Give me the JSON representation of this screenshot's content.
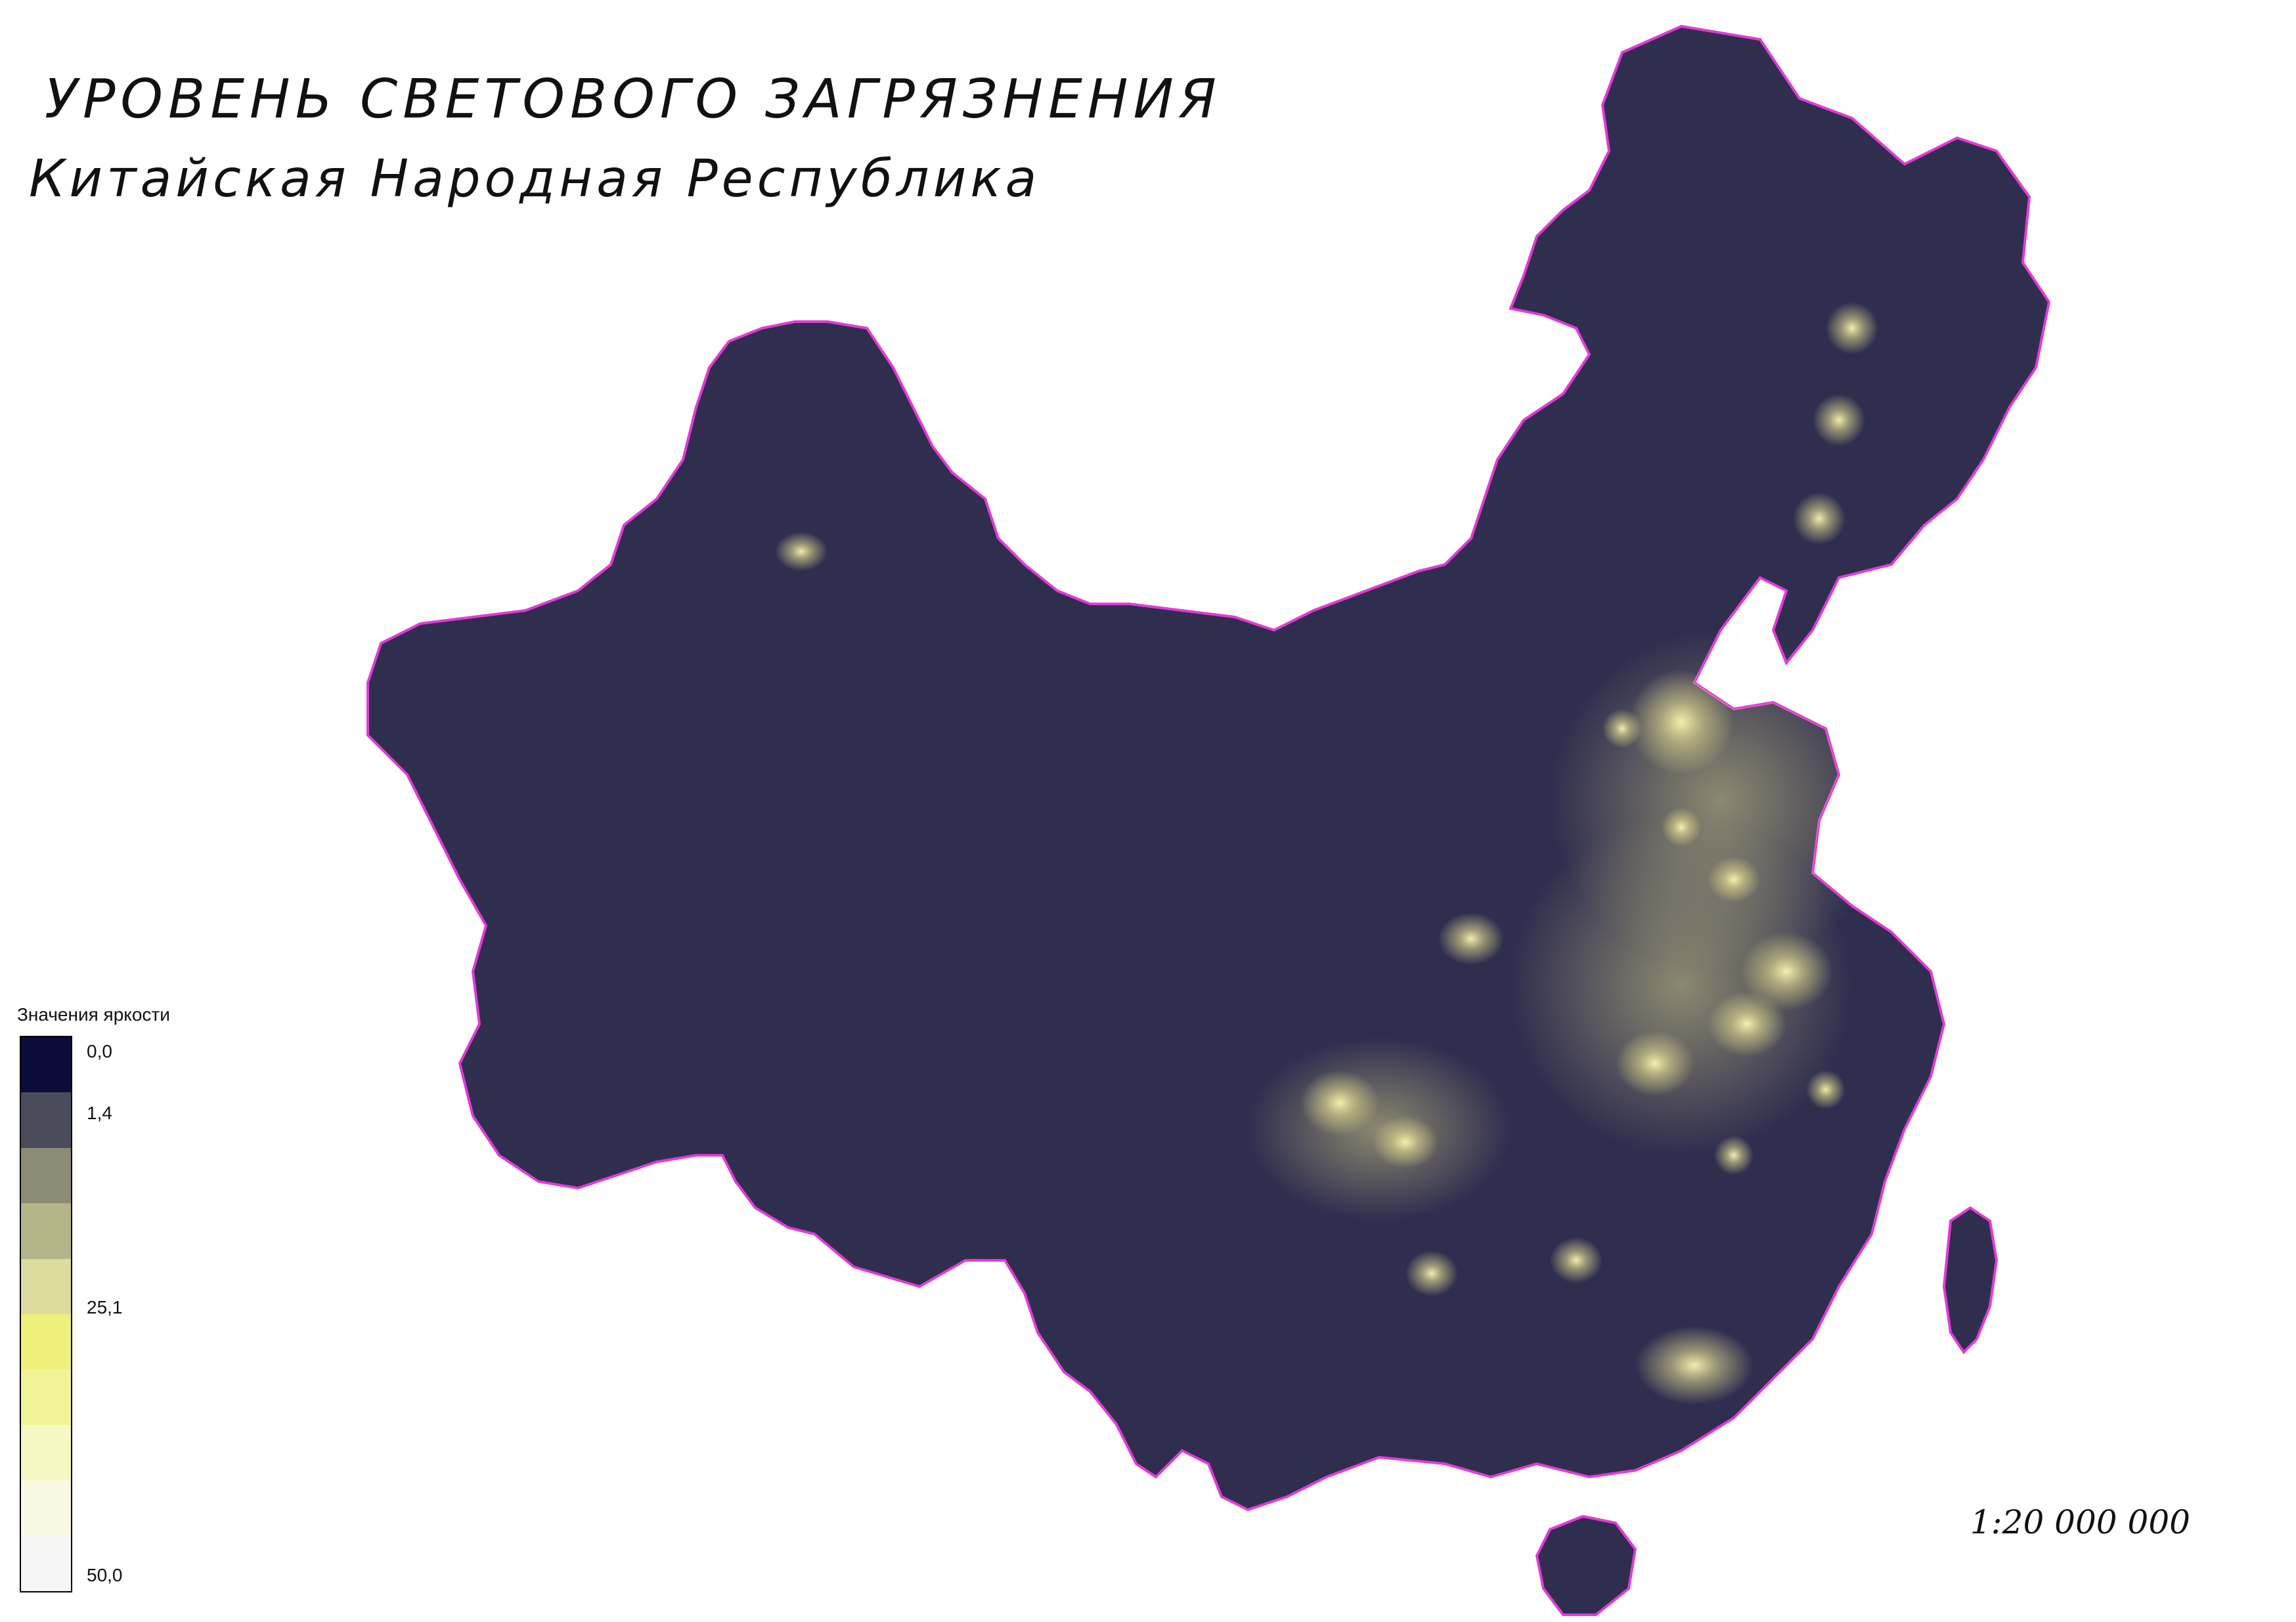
{
  "map": {
    "title": "УРОВЕНЬ СВЕТОВОГО ЗАГРЯЗНЕНИЯ",
    "subtitle": "Китайская Народная Республика",
    "scale_text": "1:20 000 000",
    "colors": {
      "land": "#2f2e4f",
      "border": "#e23bd8",
      "light": "#f4f09a"
    }
  },
  "legend": {
    "title": "Значения яркости",
    "labels": [
      "0,0",
      "1,4",
      "25,1",
      "50,0"
    ],
    "ramp_colors": [
      "#0c0c3a",
      "#4a4c5c",
      "#8c8c74",
      "#b5b58a",
      "#dcdc9e",
      "#eef07a",
      "#f2f49a",
      "#f6f8c4",
      "#fafae4",
      "#f6f6f6"
    ]
  }
}
